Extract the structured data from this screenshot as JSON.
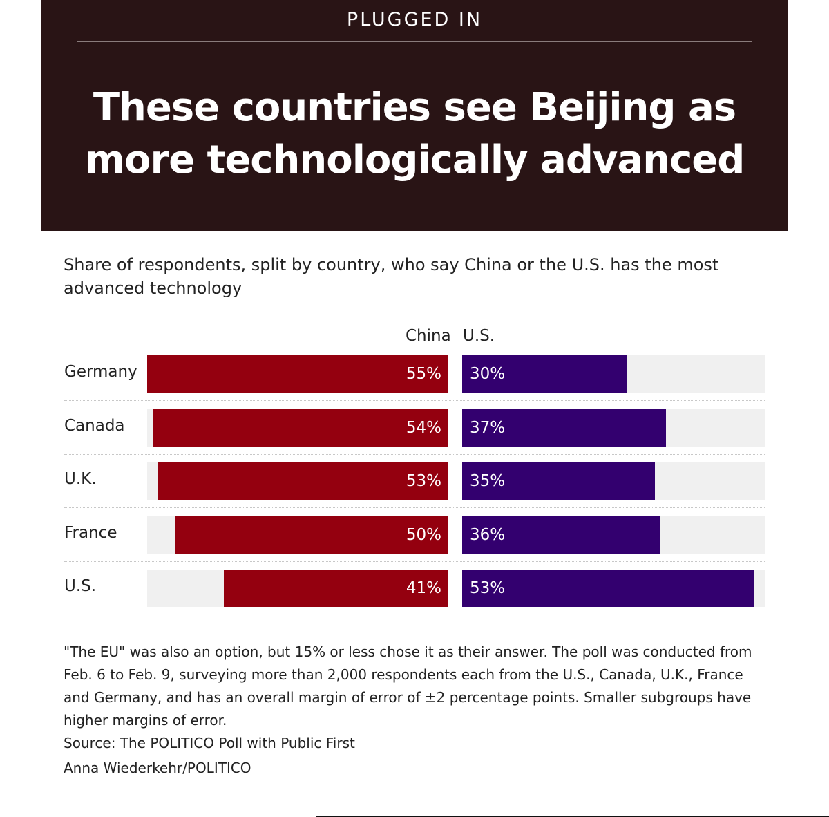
{
  "header": {
    "kicker": "PLUGGED IN",
    "title": "These countries see Beijing as more technologically advanced",
    "background": "#291415"
  },
  "subtitle": "Share of respondents, split by country, who say China or the U.S. has the most advanced technology",
  "chart_data": {
    "type": "bar",
    "orientation": "horizontal-diverging",
    "categories": [
      "Germany",
      "Canada",
      "U.K.",
      "France",
      "U.S."
    ],
    "series": [
      {
        "name": "China",
        "values": [
          55,
          54,
          53,
          50,
          41
        ],
        "color": "#94000f"
      },
      {
        "name": "U.S.",
        "values": [
          30,
          37,
          35,
          36,
          53
        ],
        "color": "#33006f"
      }
    ],
    "unit": "%",
    "value_labels": {
      "China": [
        "55%",
        "54%",
        "53%",
        "50%",
        "41%"
      ],
      "U.S.": [
        "30%",
        "37%",
        "35%",
        "36%",
        "53%"
      ]
    },
    "xlim": [
      0,
      55
    ],
    "track_color": "#f0f0f0",
    "grid": false,
    "legend": "column headers above bars"
  },
  "footnote": "\"The EU\" was also an option, but 15% or less chose it as their answer. The poll was conducted from Feb. 6 to Feb. 9, surveying more than 2,000 respondents each from the U.S., Canada, U.K., France and Germany, and has an overall margin of error of ±2 percentage points. Smaller subgroups have higher margins of error.",
  "source": "Source: The POLITICO Poll with Public First",
  "credit": "Anna Wiederkehr/POLITICO"
}
